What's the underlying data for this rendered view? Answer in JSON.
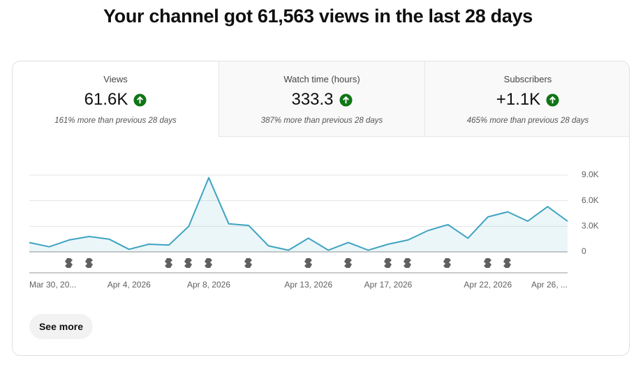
{
  "header": {
    "title": "Your channel got 61,563 views in the last 28 days"
  },
  "cards": [
    {
      "label": "Views",
      "value": "61.6K",
      "note": "161% more than previous 28 days"
    },
    {
      "label": "Watch time (hours)",
      "value": "333.3",
      "note": "387% more than previous 28 days"
    },
    {
      "label": "Subscribers",
      "value": "+1.1K",
      "note": "465% more than previous 28 days"
    }
  ],
  "chart_data": {
    "type": "area",
    "color": "#3ea3c2",
    "categories": [
      "Mar 30, 20...",
      null,
      null,
      null,
      null,
      "Apr 4, 2026",
      null,
      null,
      null,
      "Apr 8, 2026",
      null,
      null,
      null,
      null,
      "Apr 13, 2026",
      null,
      null,
      null,
      "Apr 17, 2026",
      null,
      null,
      null,
      null,
      "Apr 22, 2026",
      null,
      null,
      null,
      "Apr 26, ..."
    ],
    "values": [
      1100,
      600,
      1400,
      1800,
      1500,
      300,
      900,
      800,
      3000,
      8700,
      3300,
      3100,
      700,
      200,
      1600,
      200,
      1100,
      200,
      900,
      1400,
      2500,
      3200,
      1600,
      4100,
      4700,
      3600,
      5300,
      3600
    ],
    "ylim": [
      0,
      9000
    ],
    "yticks": [
      0,
      {
        "value": 3000,
        "label": "3.0K"
      },
      {
        "value": 6000,
        "label": "6.0K"
      },
      {
        "value": 9000,
        "label": "9.0K"
      }
    ],
    "grid": true
  },
  "button": "See more"
}
